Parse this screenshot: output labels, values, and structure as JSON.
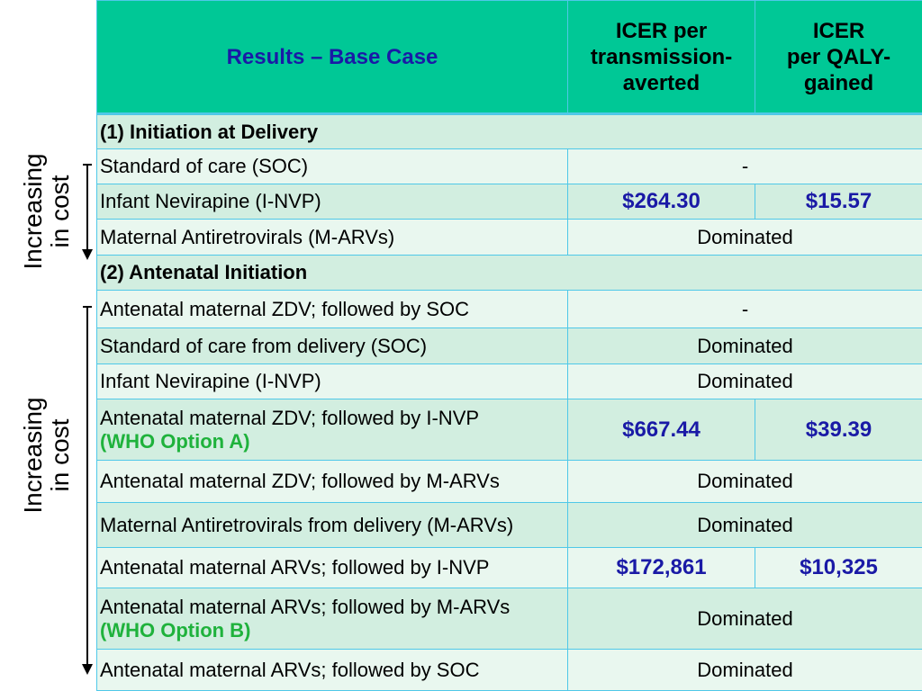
{
  "side": {
    "label1_line1": "Increasing",
    "label1_line2": "in cost",
    "label2_line1": "Increasing",
    "label2_line2": "in cost"
  },
  "table": {
    "header": {
      "col1": "Results – Base Case",
      "col2_line1": "ICER per",
      "col2_line2": "transmission-",
      "col2_line3": "averted",
      "col3_line1": "ICER",
      "col3_line2": "per QALY-",
      "col3_line3": "gained"
    },
    "section1": "(1) Initiation at Delivery",
    "section1_rows": [
      {
        "label": "Standard of care (SOC)",
        "merged": "-"
      },
      {
        "label": "Infant Nevirapine (I-NVP)",
        "icer_transmission": "$264.30",
        "icer_qaly": "$15.57"
      },
      {
        "label": "Maternal Antiretrovirals (M-ARVs)",
        "merged": "Dominated"
      }
    ],
    "section2": "(2) Antenatal Initiation",
    "section2_rows": [
      {
        "label": "Antenatal maternal ZDV; followed by SOC",
        "merged": "-"
      },
      {
        "label": "Standard of care from delivery (SOC)",
        "merged": "Dominated"
      },
      {
        "label": "Infant Nevirapine (I-NVP)",
        "merged": "Dominated"
      },
      {
        "label": "Antenatal maternal ZDV; followed by I-NVP",
        "note": "(WHO Option A)",
        "icer_transmission": "$667.44",
        "icer_qaly": "$39.39"
      },
      {
        "label": "Antenatal maternal ZDV; followed by M-ARVs",
        "merged": "Dominated"
      },
      {
        "label": "Maternal Antiretrovirals from delivery (M-ARVs)",
        "merged": "Dominated"
      },
      {
        "label": "Antenatal maternal ARVs; followed by I-NVP",
        "icer_transmission": "$172,861",
        "icer_qaly": "$10,325"
      },
      {
        "label": "Antenatal maternal ARVs; followed by M-ARVs",
        "note": "(WHO Option B)",
        "merged": "Dominated"
      },
      {
        "label": "Antenatal maternal ARVs; followed by SOC",
        "merged": "Dominated"
      }
    ]
  },
  "colors": {
    "header_bg": "#00c896",
    "header_title": "#1a1aa6",
    "row_dark": "#d2eee0",
    "row_light": "#e9f7ef",
    "value_blue": "#1a1aa6",
    "note_green": "#1fb23c",
    "border": "#4fc8e8"
  }
}
